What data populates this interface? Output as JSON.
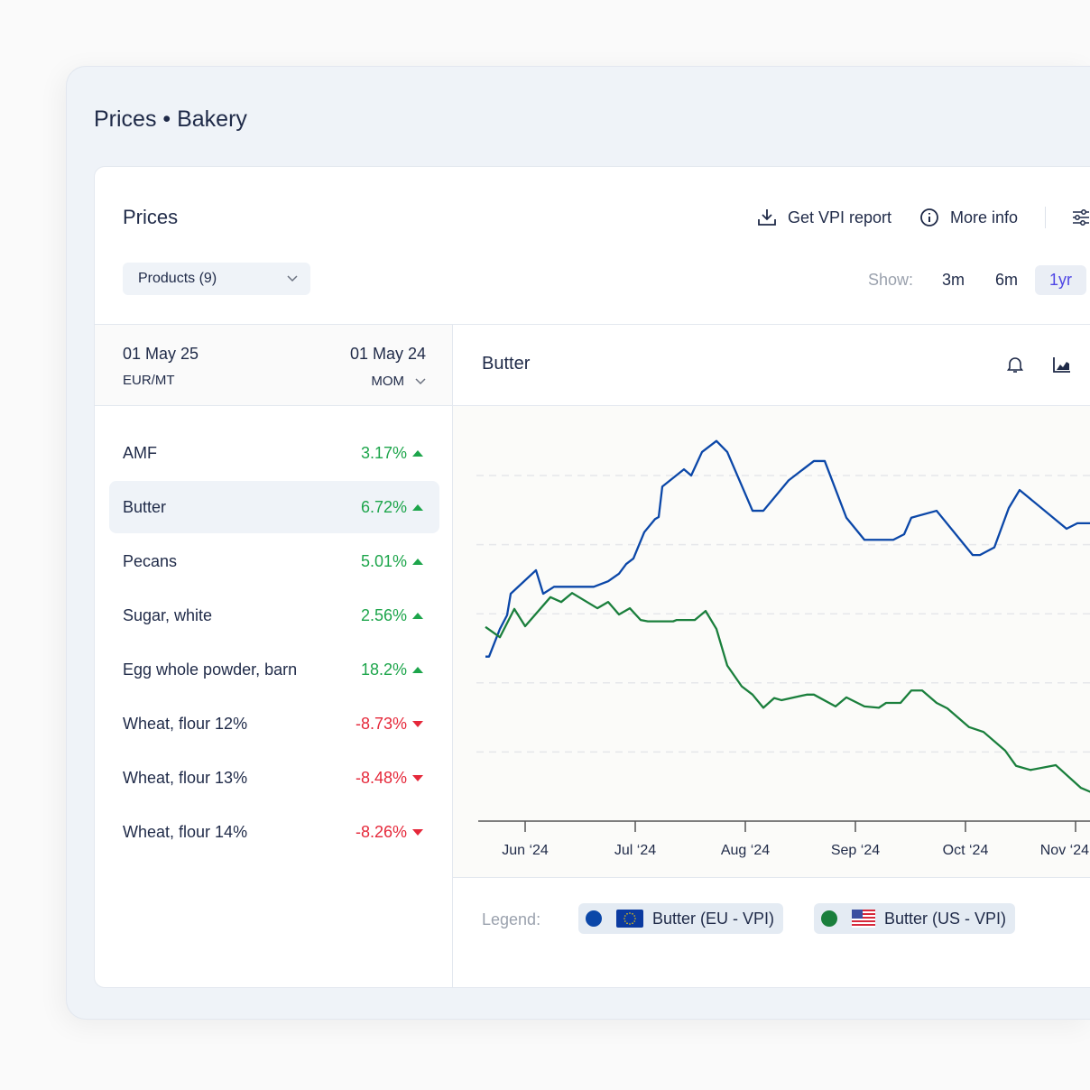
{
  "page": {
    "breadcrumb": "Prices • Bakery"
  },
  "panel": {
    "title": "Prices",
    "get_report": "Get VPI report",
    "more_info": "More info",
    "products_dropdown": "Products (9)",
    "show_label": "Show:",
    "ranges": [
      "3m",
      "6m",
      "1yr"
    ],
    "selected_range": "1yr"
  },
  "table": {
    "date_current": "01 May 25",
    "unit": "EUR/MT",
    "date_compare": "01 May 24",
    "comparison": "MOM",
    "items": [
      {
        "name": "AMF",
        "change": "3.17%",
        "direction": "up"
      },
      {
        "name": "Butter",
        "change": "6.72%",
        "direction": "up",
        "selected": true
      },
      {
        "name": "Pecans",
        "change": "5.01%",
        "direction": "up"
      },
      {
        "name": "Sugar, white",
        "change": "2.56%",
        "direction": "up"
      },
      {
        "name": "Egg whole powder, barn",
        "change": "18.2%",
        "direction": "up"
      },
      {
        "name": "Wheat, flour 12%",
        "change": "-8.73%",
        "direction": "down"
      },
      {
        "name": "Wheat, flour 13%",
        "change": "-8.48%",
        "direction": "down"
      },
      {
        "name": "Wheat, flour 14%",
        "change": "-8.26%",
        "direction": "down"
      }
    ]
  },
  "chart_panel": {
    "title": "Butter",
    "legend_label": "Legend:"
  },
  "colors": {
    "up": "#1da54b",
    "down": "#e5283a",
    "eu_series": "#0b47a8",
    "us_series": "#1a7f3c",
    "accent": "#4f46e5"
  },
  "chart_data": {
    "type": "line",
    "title": "Butter",
    "xlabel": "",
    "ylabel": "",
    "grid": true,
    "legend": "bottom",
    "x_ticks": [
      "Jun ‘24",
      "Jul ‘24",
      "Aug ‘24",
      "Sep ‘24",
      "Oct ‘24",
      "Nov ‘24"
    ],
    "series": [
      {
        "name": "Butter (EU - VPI)",
        "color": "#0b47a8",
        "flag": "eu-flag",
        "points": [
          [
            "2024-05-21",
            2.38
          ],
          [
            "2024-05-22",
            2.38
          ],
          [
            "2024-05-25",
            2.78
          ],
          [
            "2024-05-27",
            2.98
          ],
          [
            "2024-05-28",
            3.29
          ],
          [
            "2024-06-04",
            3.63
          ],
          [
            "2024-06-06",
            3.29
          ],
          [
            "2024-06-09",
            3.39
          ],
          [
            "2024-06-10",
            3.39
          ],
          [
            "2024-06-17",
            3.39
          ],
          [
            "2024-06-20",
            3.39
          ],
          [
            "2024-06-24",
            3.47
          ],
          [
            "2024-06-27",
            3.58
          ],
          [
            "2024-06-29",
            3.72
          ],
          [
            "2024-07-01",
            3.8
          ],
          [
            "2024-07-04",
            4.18
          ],
          [
            "2024-07-07",
            4.37
          ],
          [
            "2024-07-08",
            4.4
          ],
          [
            "2024-07-09",
            4.84
          ],
          [
            "2024-07-15",
            5.09
          ],
          [
            "2024-07-17",
            5.0
          ],
          [
            "2024-07-20",
            5.34
          ],
          [
            "2024-07-24",
            5.5
          ],
          [
            "2024-07-27",
            5.34
          ],
          [
            "2024-08-03",
            4.49
          ],
          [
            "2024-08-06",
            4.49
          ],
          [
            "2024-08-13",
            4.93
          ],
          [
            "2024-08-20",
            5.21
          ],
          [
            "2024-08-23",
            5.21
          ],
          [
            "2024-08-29",
            4.39
          ],
          [
            "2024-09-03",
            4.07
          ],
          [
            "2024-09-07",
            4.07
          ],
          [
            "2024-09-11",
            4.07
          ],
          [
            "2024-09-14",
            4.15
          ],
          [
            "2024-09-16",
            4.39
          ],
          [
            "2024-09-23",
            4.49
          ],
          [
            "2024-10-03",
            3.85
          ],
          [
            "2024-10-05",
            3.85
          ],
          [
            "2024-10-09",
            3.96
          ],
          [
            "2024-10-13",
            4.53
          ],
          [
            "2024-10-16",
            4.79
          ],
          [
            "2024-10-29",
            4.23
          ],
          [
            "2024-11-01",
            4.31
          ],
          [
            "2024-11-05",
            4.31
          ]
        ]
      },
      {
        "name": "Butter (US - VPI)",
        "color": "#1a7f3c",
        "flag": "us-flag",
        "points": [
          [
            "2024-05-21",
            2.81
          ],
          [
            "2024-05-25",
            2.66
          ],
          [
            "2024-05-29",
            3.07
          ],
          [
            "2024-06-01",
            2.82
          ],
          [
            "2024-06-08",
            3.24
          ],
          [
            "2024-06-11",
            3.17
          ],
          [
            "2024-06-14",
            3.3
          ],
          [
            "2024-06-21",
            3.08
          ],
          [
            "2024-06-24",
            3.17
          ],
          [
            "2024-06-27",
            2.99
          ],
          [
            "2024-06-30",
            3.08
          ],
          [
            "2024-07-03",
            2.91
          ],
          [
            "2024-07-05",
            2.89
          ],
          [
            "2024-07-08",
            2.89
          ],
          [
            "2024-07-12",
            2.89
          ],
          [
            "2024-07-13",
            2.91
          ],
          [
            "2024-07-17",
            2.91
          ],
          [
            "2024-07-18",
            2.91
          ],
          [
            "2024-07-21",
            3.04
          ],
          [
            "2024-07-24",
            2.78
          ],
          [
            "2024-07-27",
            2.25
          ],
          [
            "2024-07-31",
            1.95
          ],
          [
            "2024-08-03",
            1.83
          ],
          [
            "2024-08-06",
            1.64
          ],
          [
            "2024-08-09",
            1.78
          ],
          [
            "2024-08-11",
            1.75
          ],
          [
            "2024-08-18",
            1.83
          ],
          [
            "2024-08-20",
            1.83
          ],
          [
            "2024-08-26",
            1.66
          ],
          [
            "2024-08-29",
            1.79
          ],
          [
            "2024-09-03",
            1.66
          ],
          [
            "2024-09-07",
            1.64
          ],
          [
            "2024-09-09",
            1.71
          ],
          [
            "2024-09-13",
            1.71
          ],
          [
            "2024-09-16",
            1.89
          ],
          [
            "2024-09-19",
            1.89
          ],
          [
            "2024-09-23",
            1.71
          ],
          [
            "2024-09-26",
            1.63
          ],
          [
            "2024-10-02",
            1.36
          ],
          [
            "2024-10-06",
            1.29
          ],
          [
            "2024-10-12",
            1.02
          ],
          [
            "2024-10-15",
            0.8
          ],
          [
            "2024-10-19",
            0.74
          ],
          [
            "2024-10-26",
            0.81
          ],
          [
            "2024-11-02",
            0.48
          ],
          [
            "2024-11-05",
            0.42
          ]
        ]
      }
    ]
  }
}
